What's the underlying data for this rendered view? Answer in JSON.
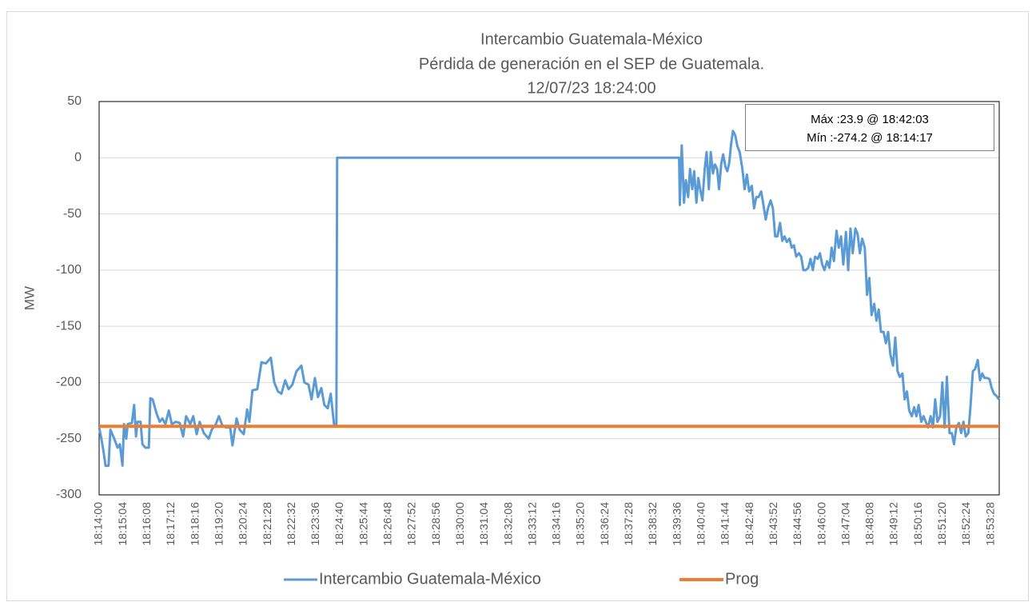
{
  "chart_data": {
    "type": "line",
    "title": [
      "Intercambio Guatemala-México",
      "Pérdida de generación en el SEP de Guatemala.",
      "12/07/23 18:24:00"
    ],
    "ylabel": "MW",
    "annotations": [
      "Máx :23.9 @ 18:42:03",
      "Mín :-274.2 @ 18:14:17"
    ],
    "xlim": [
      "18:14:00",
      "18:53:50"
    ],
    "xticks": [
      "18:14:00",
      "18:15:04",
      "18:16:08",
      "18:17:12",
      "18:18:16",
      "18:19:20",
      "18:20:24",
      "18:21:28",
      "18:22:32",
      "18:23:36",
      "18:24:40",
      "18:25:44",
      "18:26:48",
      "18:27:52",
      "18:28:56",
      "18:30:00",
      "18:31:04",
      "18:32:08",
      "18:33:12",
      "18:34:16",
      "18:35:20",
      "18:36:24",
      "18:37:28",
      "18:38:32",
      "18:39:36",
      "18:40:40",
      "18:41:44",
      "18:42:48",
      "18:43:52",
      "18:44:56",
      "18:46:00",
      "18:47:04",
      "18:48:08",
      "18:49:12",
      "18:50:16",
      "18:51:20",
      "18:52:24",
      "18:53:28"
    ],
    "ylim": [
      -300,
      50
    ],
    "yticks": [
      -300,
      -250,
      -200,
      -150,
      -100,
      -50,
      0,
      50
    ],
    "grid": true,
    "legend": "bottom",
    "series": [
      {
        "name": "Intercambio Guatemala-México",
        "color": "#5b9bd5",
        "x": [
          "18:14:00",
          "18:14:06",
          "18:14:12",
          "18:14:17",
          "18:14:25",
          "18:14:30",
          "18:14:40",
          "18:14:49",
          "18:14:55",
          "18:15:02",
          "18:15:06",
          "18:15:12",
          "18:15:16",
          "18:15:27",
          "18:15:33",
          "18:15:38",
          "18:15:42",
          "18:15:50",
          "18:15:55",
          "18:16:03",
          "18:16:12",
          "18:16:16",
          "18:16:22",
          "18:16:33",
          "18:16:41",
          "18:16:48",
          "18:16:56",
          "18:17:05",
          "18:17:13",
          "18:17:24",
          "18:17:34",
          "18:17:43",
          "18:17:51",
          "18:18:02",
          "18:18:10",
          "18:18:19",
          "18:18:27",
          "18:18:38",
          "18:18:51",
          "18:18:59",
          "18:19:10",
          "18:19:18",
          "18:19:27",
          "18:19:37",
          "18:19:48",
          "18:19:54",
          "18:20:05",
          "18:20:13",
          "18:20:24",
          "18:20:33",
          "18:20:39",
          "18:20:47",
          "18:21:00",
          "18:21:11",
          "18:21:23",
          "18:21:36",
          "18:21:45",
          "18:21:55",
          "18:22:04",
          "18:22:14",
          "18:22:23",
          "18:22:33",
          "18:22:44",
          "18:22:57",
          "18:23:05",
          "18:23:16",
          "18:23:24",
          "18:23:33",
          "18:23:41",
          "18:23:50",
          "18:23:58",
          "18:24:07",
          "18:24:15",
          "18:24:24",
          "18:24:30",
          "18:24:32",
          "18:39:40",
          "18:39:42",
          "18:39:47",
          "18:39:53",
          "18:39:58",
          "18:40:04",
          "18:40:09",
          "18:40:15",
          "18:40:20",
          "18:40:26",
          "18:40:31",
          "18:40:37",
          "18:40:42",
          "18:40:48",
          "18:40:53",
          "18:40:59",
          "18:41:04",
          "18:41:10",
          "18:41:15",
          "18:41:21",
          "18:41:26",
          "18:41:32",
          "18:41:37",
          "18:41:43",
          "18:41:48",
          "18:41:53",
          "18:41:58",
          "18:42:03",
          "18:42:09",
          "18:42:15",
          "18:42:21",
          "18:42:28",
          "18:42:34",
          "18:42:40",
          "18:42:46",
          "18:42:53",
          "18:42:59",
          "18:43:05",
          "18:43:11",
          "18:43:18",
          "18:43:24",
          "18:43:30",
          "18:43:36",
          "18:43:43",
          "18:43:49",
          "18:43:55",
          "18:44:01",
          "18:44:08",
          "18:44:14",
          "18:44:20",
          "18:44:26",
          "18:44:33",
          "18:44:39",
          "18:44:45",
          "18:44:51",
          "18:44:58",
          "18:45:04",
          "18:45:10",
          "18:45:16",
          "18:45:23",
          "18:45:29",
          "18:45:35",
          "18:45:41",
          "18:45:48",
          "18:45:54",
          "18:46:00",
          "18:46:06",
          "18:46:13",
          "18:46:19",
          "18:46:25",
          "18:46:31",
          "18:46:38",
          "18:46:44",
          "18:46:50",
          "18:46:56",
          "18:47:03",
          "18:47:09",
          "18:47:15",
          "18:47:21",
          "18:47:28",
          "18:47:34",
          "18:47:40",
          "18:47:46",
          "18:47:53",
          "18:47:59",
          "18:48:05",
          "18:48:11",
          "18:48:18",
          "18:48:24",
          "18:48:30",
          "18:48:36",
          "18:48:43",
          "18:48:49",
          "18:48:55",
          "18:49:01",
          "18:49:08",
          "18:49:14",
          "18:49:20",
          "18:49:26",
          "18:49:33",
          "18:49:39",
          "18:49:45",
          "18:49:51",
          "18:49:58",
          "18:50:04",
          "18:50:10",
          "18:50:16",
          "18:50:23",
          "18:50:29",
          "18:50:35",
          "18:50:41",
          "18:50:48",
          "18:50:54",
          "18:51:00",
          "18:51:06",
          "18:51:13",
          "18:51:19",
          "18:51:25",
          "18:51:31",
          "18:51:38",
          "18:51:44",
          "18:51:50",
          "18:51:56",
          "18:52:03",
          "18:52:09",
          "18:52:15",
          "18:52:21",
          "18:52:28",
          "18:52:34",
          "18:52:40",
          "18:52:46",
          "18:52:53",
          "18:52:59",
          "18:53:05",
          "18:53:11",
          "18:53:18",
          "18:53:24",
          "18:53:30",
          "18:53:36",
          "18:53:43",
          "18:53:49"
        ],
        "values": [
          -240,
          -250,
          -262,
          -274.2,
          -274,
          -242,
          -250,
          -258,
          -255,
          -274,
          -237,
          -250,
          -237,
          -236,
          -220,
          -248,
          -235,
          -235,
          -255,
          -258,
          -258,
          -214,
          -215,
          -228,
          -235,
          -232,
          -237,
          -225,
          -237,
          -235,
          -236,
          -248,
          -230,
          -237,
          -230,
          -246,
          -235,
          -245,
          -250,
          -242,
          -237,
          -230,
          -238,
          -240,
          -240,
          -256,
          -232,
          -242,
          -246,
          -224,
          -235,
          -207,
          -206,
          -182,
          -183,
          -178,
          -200,
          -208,
          -210,
          -198,
          -206,
          -202,
          -190,
          -185,
          -200,
          -202,
          -215,
          -196,
          -213,
          -205,
          -220,
          -223,
          -210,
          -238,
          -238,
          0,
          0,
          -42,
          11,
          -40,
          -20,
          -35,
          -10,
          -28,
          -12,
          -40,
          -18,
          -30,
          -38,
          -10,
          5,
          -28,
          5,
          -14,
          -6,
          -10,
          -28,
          -5,
          3,
          -8,
          -12,
          -5,
          12,
          23.9,
          20,
          10,
          5,
          -10,
          -28,
          -15,
          -30,
          -25,
          -45,
          -35,
          -35,
          -30,
          -42,
          -55,
          -45,
          -38,
          -45,
          -70,
          -70,
          -58,
          -74,
          -70,
          -75,
          -72,
          -80,
          -78,
          -88,
          -85,
          -88,
          -100,
          -100,
          -98,
          -90,
          -100,
          -88,
          -90,
          -85,
          -95,
          -100,
          -92,
          -98,
          -80,
          -92,
          -65,
          -80,
          -70,
          -95,
          -66,
          -100,
          -63,
          -85,
          -63,
          -68,
          -85,
          -72,
          -80,
          -122,
          -107,
          -140,
          -130,
          -145,
          -135,
          -155,
          -155,
          -165,
          -155,
          -175,
          -185,
          -160,
          -190,
          -195,
          -192,
          -215,
          -208,
          -225,
          -230,
          -222,
          -230,
          -220,
          -235,
          -230,
          -235,
          -240,
          -230,
          -240,
          -215,
          -235,
          -230,
          -200,
          -240,
          -195,
          -245,
          -245,
          -255,
          -240,
          -236,
          -245,
          -235,
          -248,
          -245,
          -220,
          -190,
          -188,
          -180,
          -198,
          -192,
          -196,
          -196,
          -197,
          -205,
          -210,
          -212,
          -215
        ]
      },
      {
        "name": "Prog",
        "color": "#ed7d31",
        "x": [
          "18:14:00",
          "18:53:50"
        ],
        "values": [
          -239,
          -239
        ]
      }
    ]
  }
}
